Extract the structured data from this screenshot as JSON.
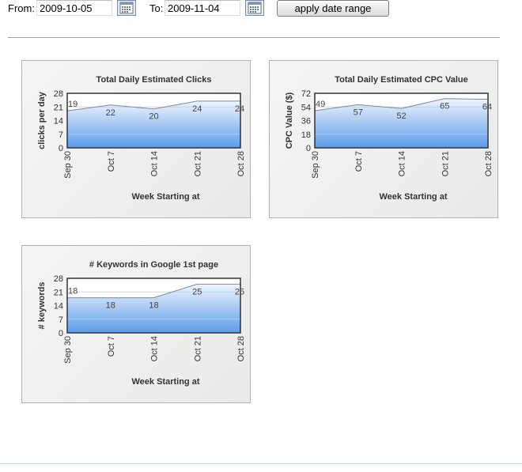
{
  "date_range": {
    "from_label": "From:",
    "from_value": "2009-10-05",
    "to_label": "To:",
    "to_value": "2009-11-04",
    "apply_label": "apply date range"
  },
  "chart_data": [
    {
      "type": "area",
      "title": "Total Daily Estimated Clicks",
      "xlabel": "Week Starting at",
      "ylabel": "clicks per day",
      "categories": [
        "Sep 30",
        "Oct 7",
        "Oct 14",
        "Oct 21",
        "Oct 28"
      ],
      "values": [
        19,
        22,
        20,
        24,
        24
      ],
      "data_labels": [
        "19",
        "22",
        "20",
        "24",
        "24"
      ],
      "yticks": [
        "0",
        "7",
        "14",
        "21",
        "28"
      ],
      "ylim": [
        0,
        28
      ],
      "grid": true,
      "color": "#5b9bea"
    },
    {
      "type": "area",
      "title": "Total Daily Estimated CPC Value",
      "xlabel": "Week Starting at",
      "ylabel": "CPC Value ($)",
      "categories": [
        "Sep 30",
        "Oct 7",
        "Oct 14",
        "Oct 21",
        "Oct 28"
      ],
      "values": [
        49,
        57,
        52,
        65,
        64
      ],
      "data_labels": [
        "49",
        "57",
        "52",
        "65",
        "64"
      ],
      "yticks": [
        "0",
        "18",
        "36",
        "54",
        "72"
      ],
      "ylim": [
        0,
        72
      ],
      "grid": true,
      "color": "#5b9bea"
    },
    {
      "type": "area",
      "title": "# Keywords in Google 1st page",
      "xlabel": "Week Starting at",
      "ylabel": "# keywords",
      "categories": [
        "Sep 30",
        "Oct 7",
        "Oct 14",
        "Oct 21",
        "Oct 28"
      ],
      "values": [
        18,
        18,
        18,
        25,
        25
      ],
      "data_labels": [
        "18",
        "18",
        "18",
        "25",
        "25"
      ],
      "yticks": [
        "0",
        "7",
        "14",
        "21",
        "28"
      ],
      "ylim": [
        0,
        28
      ],
      "grid": true,
      "color": "#5b9bea"
    }
  ]
}
